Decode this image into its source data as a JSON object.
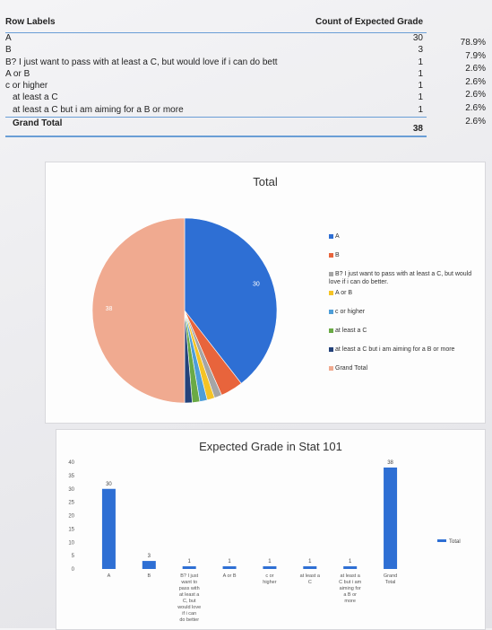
{
  "pivot": {
    "header_label": "Row Labels",
    "header_count": "Count of Expected Grade",
    "rows": [
      {
        "label": "A",
        "count": "30",
        "pct": "78.9%"
      },
      {
        "label": "B",
        "count": "3",
        "pct": "7.9%"
      },
      {
        "label": "B? I just want to pass with at least a C, but would love if i can do bett",
        "count": "1",
        "pct": "2.6%"
      },
      {
        "label": "A or B",
        "count": "1",
        "pct": "2.6%"
      },
      {
        "label": "c or higher",
        "count": "1",
        "pct": "2.6%"
      },
      {
        "label": "at least a C",
        "count": "1",
        "pct": "2.6%"
      },
      {
        "label": "at least a C but i am aiming for a B or more",
        "count": "1",
        "pct": "2.6%"
      }
    ],
    "total_label": "Grand Total",
    "total_count": "38"
  },
  "chart_data": [
    {
      "type": "pie",
      "title": "Total",
      "categories": [
        "A",
        "B",
        "B? I just want to pass with at least a C, but would love if i can do better.",
        "A or B",
        "c or higher",
        "at least a C",
        "at least a C but i am aiming for a B or more",
        "Grand Total"
      ],
      "values": [
        30,
        3,
        1,
        1,
        1,
        1,
        1,
        38
      ],
      "data_labels": [
        "30",
        "",
        "",
        "",
        "",
        "",
        "",
        "38"
      ],
      "colors": [
        "#2e6fd4",
        "#e8643c",
        "#a5a5a5",
        "#f5c325",
        "#4e9ed8",
        "#6aaa45",
        "#24427a",
        "#f0aa90"
      ],
      "legend": "right"
    },
    {
      "type": "bar",
      "title": "Expected Grade in Stat 101",
      "categories": [
        "A",
        "B",
        "B? I just want to pass with at least a C, but would love if i can do better",
        "A or B",
        "c or higher",
        "at least a C",
        "at least a C but i am aiming for a B or more",
        "Grand Total"
      ],
      "values": [
        30,
        3,
        1,
        1,
        1,
        1,
        1,
        38
      ],
      "yticks": [
        "0",
        "5",
        "10",
        "15",
        "20",
        "25",
        "30",
        "35",
        "40"
      ],
      "ylim": [
        0,
        40
      ],
      "series": [
        {
          "name": "Total",
          "values": [
            30,
            3,
            1,
            1,
            1,
            1,
            1,
            38
          ]
        }
      ],
      "color": "#2e6fd4",
      "legend": "right"
    }
  ]
}
